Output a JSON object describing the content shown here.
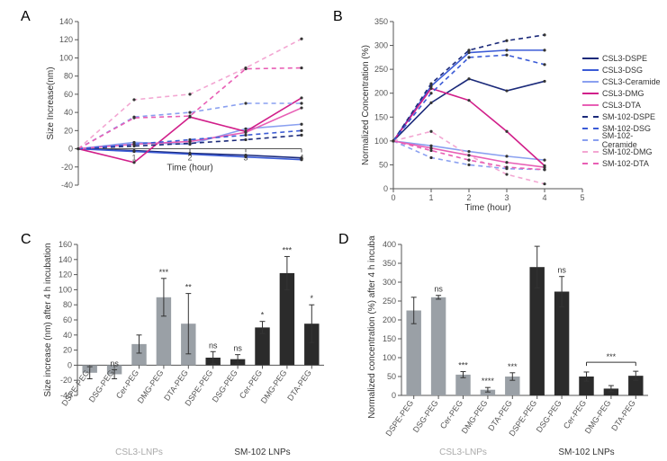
{
  "panelLabels": {
    "A": "A",
    "B": "B",
    "C": "C",
    "D": "D"
  },
  "colors": {
    "csl3_dspe": "#1b2a7a",
    "csl3_dsg": "#3b5bd6",
    "csl3_cer": "#8aa0f0",
    "csl3_dmg": "#d11f8a",
    "csl3_dta": "#e85fb5",
    "sm_dspe": "#1b2a7a",
    "sm_dsg": "#3b5bd6",
    "sm_cer": "#8aa0f0",
    "sm_dmg": "#f3a6d2",
    "sm_dta": "#e85fb5",
    "bar_gray": "#9aa0a6",
    "bar_black": "#2b2b2b",
    "axis": "#555555",
    "bg": "#ffffff"
  },
  "legend": [
    {
      "key": "csl3_dspe",
      "label": "CSL3-DSPE",
      "dash": "solid"
    },
    {
      "key": "csl3_dsg",
      "label": "CSL3-DSG",
      "dash": "solid"
    },
    {
      "key": "csl3_cer",
      "label": "CSL3-Ceramide",
      "dash": "solid"
    },
    {
      "key": "csl3_dmg",
      "label": "CSL3-DMG",
      "dash": "solid"
    },
    {
      "key": "csl3_dta",
      "label": "CSL3-DTA",
      "dash": "solid"
    },
    {
      "key": "sm_dspe",
      "label": "SM-102-DSPE",
      "dash": "dashed"
    },
    {
      "key": "sm_dsg",
      "label": "SM-102-DSG",
      "dash": "dashed"
    },
    {
      "key": "sm_cer",
      "label": "SM-102-Ceramide",
      "dash": "dashed"
    },
    {
      "key": "sm_dmg",
      "label": "SM-102-DMG",
      "dash": "dashed"
    },
    {
      "key": "sm_dta",
      "label": "SM-102-DTA",
      "dash": "dashed"
    }
  ],
  "panelA": {
    "x": {
      "min": 0,
      "max": 4,
      "ticks": [
        1,
        2,
        3,
        4
      ],
      "title": "Time (hour)"
    },
    "y": {
      "min": -40,
      "max": 140,
      "step": 20,
      "title": "Size Increase(nm)"
    },
    "series": [
      {
        "key": "csl3_dspe",
        "dash": "solid",
        "pts": [
          [
            0,
            0
          ],
          [
            1,
            -2
          ],
          [
            2,
            -5
          ],
          [
            3,
            -7
          ],
          [
            4,
            -10
          ]
        ]
      },
      {
        "key": "csl3_dsg",
        "dash": "solid",
        "pts": [
          [
            0,
            0
          ],
          [
            1,
            -3
          ],
          [
            2,
            -6
          ],
          [
            3,
            -9
          ],
          [
            4,
            -12
          ]
        ]
      },
      {
        "key": "csl3_cer",
        "dash": "solid",
        "pts": [
          [
            0,
            0
          ],
          [
            1,
            7
          ],
          [
            2,
            5
          ],
          [
            3,
            22
          ],
          [
            4,
            27
          ]
        ]
      },
      {
        "key": "csl3_dmg",
        "dash": "solid",
        "pts": [
          [
            0,
            0
          ],
          [
            1,
            -15
          ],
          [
            2,
            35
          ],
          [
            3,
            19
          ],
          [
            4,
            56
          ]
        ]
      },
      {
        "key": "csl3_dta",
        "dash": "solid",
        "pts": [
          [
            0,
            0
          ],
          [
            1,
            5
          ],
          [
            2,
            8
          ],
          [
            3,
            18
          ],
          [
            4,
            45
          ]
        ]
      },
      {
        "key": "sm_dspe",
        "dash": "dashed",
        "pts": [
          [
            0,
            0
          ],
          [
            1,
            3
          ],
          [
            2,
            6
          ],
          [
            3,
            10
          ],
          [
            4,
            15
          ]
        ]
      },
      {
        "key": "sm_dsg",
        "dash": "dashed",
        "pts": [
          [
            0,
            0
          ],
          [
            1,
            5
          ],
          [
            2,
            10
          ],
          [
            3,
            15
          ],
          [
            4,
            20
          ]
        ]
      },
      {
        "key": "sm_cer",
        "dash": "dashed",
        "pts": [
          [
            0,
            0
          ],
          [
            1,
            35
          ],
          [
            2,
            40
          ],
          [
            3,
            50
          ],
          [
            4,
            50
          ]
        ]
      },
      {
        "key": "sm_dmg",
        "dash": "dashed",
        "pts": [
          [
            0,
            0
          ],
          [
            1,
            54
          ],
          [
            2,
            60
          ],
          [
            3,
            89
          ],
          [
            4,
            121
          ]
        ]
      },
      {
        "key": "sm_dta",
        "dash": "dashed",
        "pts": [
          [
            0,
            0
          ],
          [
            1,
            34
          ],
          [
            2,
            36
          ],
          [
            3,
            88
          ],
          [
            4,
            89
          ]
        ]
      }
    ]
  },
  "panelB": {
    "x": {
      "min": 0,
      "max": 5,
      "ticks": [
        0,
        1,
        2,
        3,
        4,
        5
      ],
      "title": "Time (hour)"
    },
    "y": {
      "min": 0,
      "max": 350,
      "step": 50,
      "title": "Normalized Concentration (%)"
    },
    "series": [
      {
        "key": "csl3_dspe",
        "dash": "solid",
        "pts": [
          [
            0,
            100
          ],
          [
            1,
            180
          ],
          [
            2,
            230
          ],
          [
            3,
            205
          ],
          [
            4,
            225
          ]
        ]
      },
      {
        "key": "csl3_dsg",
        "dash": "solid",
        "pts": [
          [
            0,
            100
          ],
          [
            1,
            215
          ],
          [
            2,
            285
          ],
          [
            3,
            290
          ],
          [
            4,
            290
          ]
        ]
      },
      {
        "key": "csl3_cer",
        "dash": "solid",
        "pts": [
          [
            0,
            100
          ],
          [
            1,
            90
          ],
          [
            2,
            78
          ],
          [
            3,
            68
          ],
          [
            4,
            60
          ]
        ]
      },
      {
        "key": "csl3_dmg",
        "dash": "solid",
        "pts": [
          [
            0,
            100
          ],
          [
            1,
            210
          ],
          [
            2,
            185
          ],
          [
            3,
            120
          ],
          [
            4,
            48
          ]
        ]
      },
      {
        "key": "csl3_dta",
        "dash": "solid",
        "pts": [
          [
            0,
            100
          ],
          [
            1,
            85
          ],
          [
            2,
            70
          ],
          [
            3,
            55
          ],
          [
            4,
            45
          ]
        ]
      },
      {
        "key": "sm_dspe",
        "dash": "dashed",
        "pts": [
          [
            0,
            100
          ],
          [
            1,
            220
          ],
          [
            2,
            290
          ],
          [
            3,
            310
          ],
          [
            4,
            322
          ]
        ]
      },
      {
        "key": "sm_dsg",
        "dash": "dashed",
        "pts": [
          [
            0,
            100
          ],
          [
            1,
            200
          ],
          [
            2,
            275
          ],
          [
            3,
            280
          ],
          [
            4,
            260
          ]
        ]
      },
      {
        "key": "sm_cer",
        "dash": "dashed",
        "pts": [
          [
            0,
            100
          ],
          [
            1,
            65
          ],
          [
            2,
            50
          ],
          [
            3,
            42
          ],
          [
            4,
            40
          ]
        ]
      },
      {
        "key": "sm_dmg",
        "dash": "dashed",
        "pts": [
          [
            0,
            100
          ],
          [
            1,
            120
          ],
          [
            2,
            70
          ],
          [
            3,
            30
          ],
          [
            4,
            10
          ]
        ]
      },
      {
        "key": "sm_dta",
        "dash": "dashed",
        "pts": [
          [
            0,
            100
          ],
          [
            1,
            80
          ],
          [
            2,
            60
          ],
          [
            3,
            45
          ],
          [
            4,
            40
          ]
        ]
      }
    ]
  },
  "panelC": {
    "y": {
      "min": -40,
      "max": 160,
      "step": 20,
      "title": "Size increase (nm) after 4 h incubation"
    },
    "groups": [
      {
        "label": "CSL3-LNPs",
        "color": "bar_gray",
        "textClass": "group-label"
      },
      {
        "label": "SM-102 LNPs",
        "color": "bar_black",
        "textClass": "group-label-dark"
      }
    ],
    "bars": [
      {
        "label": "DSPE-PEG",
        "val": -10,
        "err": 8,
        "sig": "",
        "color": "bar_gray"
      },
      {
        "label": "DSG-PEG",
        "val": -12,
        "err": 6,
        "sig": "ns",
        "color": "bar_gray"
      },
      {
        "label": "Cer-PEG",
        "val": 28,
        "err": 12,
        "sig": "",
        "color": "bar_gray"
      },
      {
        "label": "DMG-PEG",
        "val": 90,
        "err": 25,
        "sig": "***",
        "color": "bar_gray"
      },
      {
        "label": "DTA-PEG",
        "val": 55,
        "err": 40,
        "sig": "**",
        "color": "bar_gray"
      },
      {
        "label": "DSPE-PEG",
        "val": 10,
        "err": 8,
        "sig": "ns",
        "color": "bar_black"
      },
      {
        "label": "DSG-PEG",
        "val": 8,
        "err": 6,
        "sig": "ns",
        "color": "bar_black"
      },
      {
        "label": "Cer-PEG",
        "val": 50,
        "err": 8,
        "sig": "*",
        "color": "bar_black"
      },
      {
        "label": "DMG-PEG",
        "val": 122,
        "err": 22,
        "sig": "***",
        "color": "bar_black"
      },
      {
        "label": "DTA-PEG",
        "val": 55,
        "err": 25,
        "sig": "*",
        "color": "bar_black"
      }
    ]
  },
  "panelD": {
    "y": {
      "min": 0,
      "max": 400,
      "step": 50,
      "title": "Normalized concentration (%) after 4 h incubation"
    },
    "groups": [
      {
        "label": "CSL3-LNPs",
        "color": "bar_gray",
        "textClass": "group-label"
      },
      {
        "label": "SM-102 LNPs",
        "color": "bar_black",
        "textClass": "group-label-dark"
      }
    ],
    "bracket": {
      "from": 7,
      "to": 9,
      "sig": "***"
    },
    "bars": [
      {
        "label": "DSPE-PEG",
        "val": 225,
        "err": 35,
        "sig": "",
        "color": "bar_gray"
      },
      {
        "label": "DSG-PEG",
        "val": 260,
        "err": 5,
        "sig": "ns",
        "color": "bar_gray"
      },
      {
        "label": "Cer-PEG",
        "val": 55,
        "err": 8,
        "sig": "***",
        "color": "bar_gray"
      },
      {
        "label": "DMG-PEG",
        "val": 15,
        "err": 6,
        "sig": "****",
        "color": "bar_gray"
      },
      {
        "label": "DTA-PEG",
        "val": 50,
        "err": 10,
        "sig": "***",
        "color": "bar_gray"
      },
      {
        "label": "DSPE-PEG",
        "val": 340,
        "err": 55,
        "sig": "",
        "color": "bar_black"
      },
      {
        "label": "DSG-PEG",
        "val": 275,
        "err": 40,
        "sig": "ns",
        "color": "bar_black"
      },
      {
        "label": "Cer-PEG",
        "val": 50,
        "err": 12,
        "sig": "",
        "color": "bar_black"
      },
      {
        "label": "DMG-PEG",
        "val": 18,
        "err": 8,
        "sig": "",
        "color": "bar_black"
      },
      {
        "label": "DTA-PEG",
        "val": 52,
        "err": 12,
        "sig": "",
        "color": "bar_black"
      }
    ]
  }
}
